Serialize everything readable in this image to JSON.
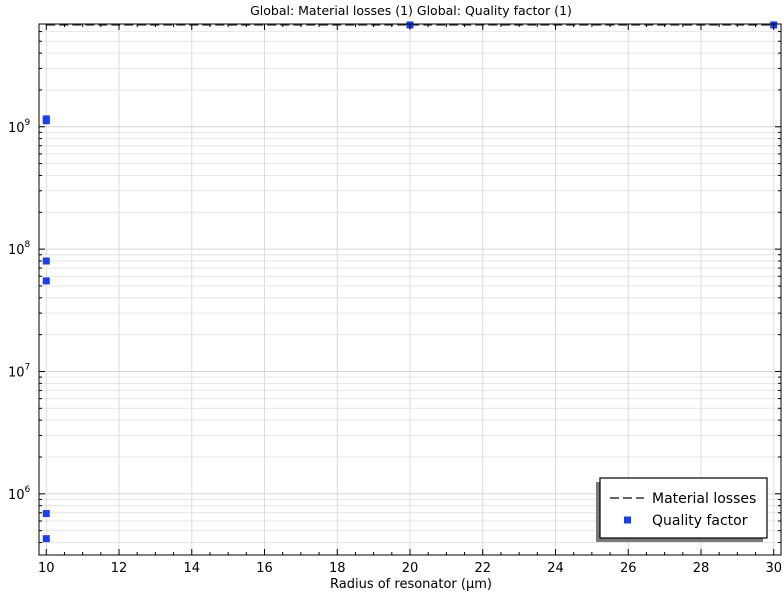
{
  "chart_data": {
    "type": "scatter",
    "title": "Global: Material losses (1)  Global: Quality factor (1)",
    "xlabel": "Radius of resonator (µm)",
    "ylabel": "",
    "xlim": [
      9.8,
      30.2
    ],
    "ylim_log10": [
      5.5,
      9.84
    ],
    "y_scale": "log",
    "grid": true,
    "legend_position": "bottom-right",
    "x_ticks": [
      10,
      12,
      14,
      16,
      18,
      20,
      22,
      24,
      26,
      28,
      30
    ],
    "y_ticks": [
      {
        "base": "10",
        "exp": "6",
        "log10": 6
      },
      {
        "base": "10",
        "exp": "7",
        "log10": 7
      },
      {
        "base": "10",
        "exp": "8",
        "log10": 8
      },
      {
        "base": "10",
        "exp": "9",
        "log10": 9
      }
    ],
    "series": [
      {
        "name": "Material losses",
        "style": "dashed-line",
        "color": "#333333",
        "x": [
          10,
          20,
          30
        ],
        "y": [
          6800000000,
          6800000000,
          6800000000
        ]
      },
      {
        "name": "Quality factor",
        "style": "square-marker",
        "color": "#1f3fe6",
        "x": [
          10,
          10,
          10,
          10,
          10,
          10,
          20,
          30
        ],
        "y": [
          430000,
          690000,
          55000000,
          80000000,
          1120000000,
          1160000000,
          6800000000,
          6800000000
        ]
      }
    ]
  }
}
